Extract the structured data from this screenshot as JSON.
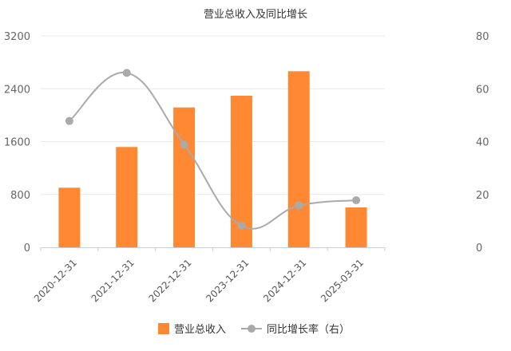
{
  "chart_data": {
    "type": "bar+line",
    "title": "营业总收入及同比增长",
    "categories": [
      "2020-12-31",
      "2021-12-31",
      "2022-12-31",
      "2023-12-31",
      "2024-12-31",
      "2025-03-31"
    ],
    "series": [
      {
        "name": "营业总收入",
        "type": "bar",
        "axis": "left",
        "color": "#FF8833",
        "values": [
          902,
          1518,
          2117,
          2294,
          2665,
          604
        ]
      },
      {
        "name": "同比增长率（右）",
        "type": "line",
        "axis": "right",
        "color": "#AAAAAA",
        "values": [
          47.8,
          66.0,
          38.9,
          8.2,
          15.8,
          17.8
        ]
      }
    ],
    "y_left": {
      "ticks": [
        "0",
        "800",
        "1600",
        "2400",
        "3200"
      ],
      "range": [
        0,
        3200
      ]
    },
    "y_right": {
      "ticks": [
        "0",
        "20",
        "40",
        "60",
        "80"
      ],
      "range": [
        0,
        80
      ]
    },
    "grid": true,
    "legend": "bottom"
  }
}
